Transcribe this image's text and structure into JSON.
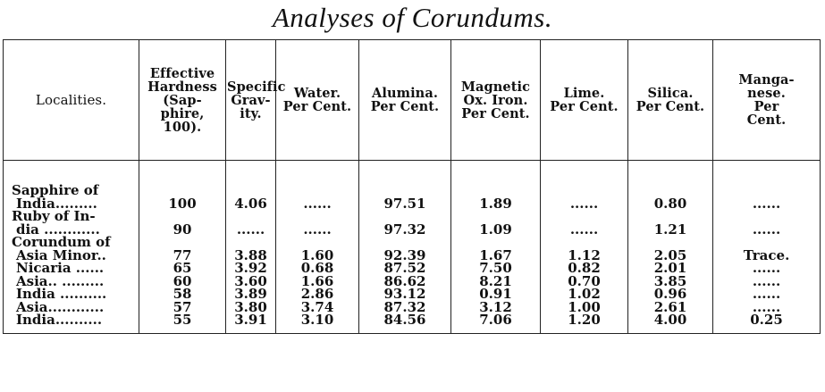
{
  "title": "Analyses of Corundums.",
  "columns": [
    "Localities.",
    "Effective\nHardness\n(Sap-\nphire,\n100).",
    "Specific\nGrav-\nity.",
    "Water.\nPer Cent.",
    "Alumina.\nPer Cent.",
    "Magnetic\nOx. Iron.\nPer Cent.",
    "Lime.\nPer Cent.",
    "Silica.\nPer Cent.",
    "Manga-\nnese.\nPer\nCent."
  ],
  "rows": [
    {
      "locality": "Sapphire of",
      "cells": [
        "",
        "",
        "",
        "",
        "",
        "",
        "",
        ""
      ]
    },
    {
      "locality": "India.........",
      "cells": [
        "100",
        "4.06",
        "......",
        "97.51",
        "1.89",
        "......",
        "0.80",
        "......"
      ]
    },
    {
      "locality": "Ruby of In-",
      "cells": [
        "",
        "",
        "",
        "",
        "",
        "",
        "",
        ""
      ]
    },
    {
      "locality": "dia ............",
      "cells": [
        "90",
        "......",
        "......",
        "97.32",
        "1.09",
        "......",
        "1.21",
        "......"
      ]
    },
    {
      "locality": "Corundum of",
      "cells": [
        "",
        "",
        "",
        "",
        "",
        "",
        "",
        ""
      ]
    },
    {
      "locality": "Asia Minor..",
      "cells": [
        "77",
        "3.88",
        "1.60",
        "92.39",
        "1.67",
        "1.12",
        "2.05",
        "Trace."
      ]
    },
    {
      "locality": "Nicaria ......",
      "cells": [
        "65",
        "3.92",
        "0.68",
        "87.52",
        "7.50",
        "0.82",
        "2.01",
        "......"
      ]
    },
    {
      "locality": "Asia.. .........",
      "cells": [
        "60",
        "3.60",
        "1.66",
        "86.62",
        "8.21",
        "0.70",
        "3.85",
        "......"
      ]
    },
    {
      "locality": "India ..........",
      "cells": [
        "58",
        "3.89",
        "2.86",
        "93.12",
        "0.91",
        "1.02",
        "0.96",
        "......"
      ]
    },
    {
      "locality": "Asia............",
      "cells": [
        "57",
        "3.80",
        "3.74",
        "87.32",
        "3.12",
        "1.00",
        "2.61",
        "......"
      ]
    },
    {
      "locality": "India..........",
      "cells": [
        "55",
        "3.91",
        "3.10",
        "84.56",
        "7.06",
        "1.20",
        "4.00",
        "0.25"
      ]
    }
  ]
}
